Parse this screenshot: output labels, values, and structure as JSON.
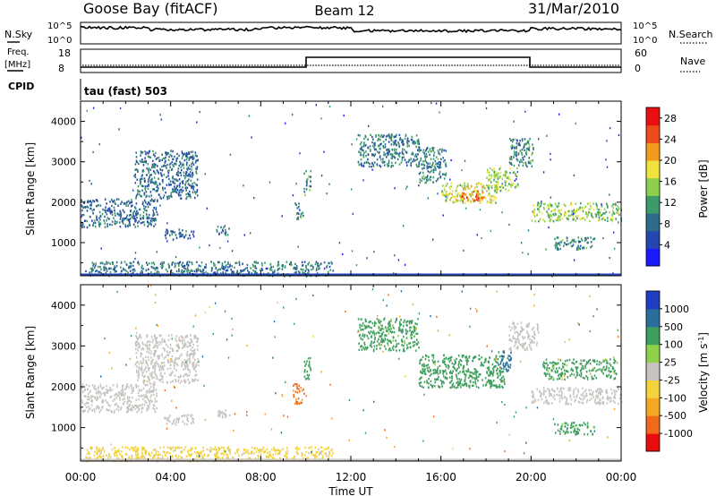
{
  "header": {
    "station": "Goose Bay (fitACF)",
    "beam": "Beam 12",
    "date": "31/Mar/2010"
  },
  "strips": {
    "nsky_label": "N.Sky",
    "nsearch_label": "N.Search",
    "nsky_ticks": [
      "10^5",
      "10^0"
    ],
    "freq_label": "Freq.",
    "freq_unit": "[MHz]",
    "freq_ticks": [
      "18",
      "8"
    ],
    "nave_label": "Nave",
    "nave_ticks": [
      "60",
      "0"
    ],
    "cpid_label": "CPID",
    "cpid_value": "tau (fast) 503"
  },
  "colors": {
    "power": [
      "#1a1aff",
      "#2346b0",
      "#2e6b8a",
      "#3d9a6a",
      "#8ccf4a",
      "#f0e23a",
      "#f39a1e",
      "#ee4a1a",
      "#e81010"
    ],
    "velocity": [
      "#e80d0d",
      "#f06a1a",
      "#f5a623",
      "#f3d23a",
      "#c7c4c0",
      "#8fd24a",
      "#3e9e5e",
      "#2a6f9b",
      "#1f3fc2"
    ]
  },
  "chart_data": [
    {
      "type": "heatmap",
      "name": "power",
      "xlabel": "Time UT",
      "ylabel": "Slant Range [km]",
      "xticks": [
        "00:00",
        "04:00",
        "08:00",
        "12:00",
        "16:00",
        "20:00",
        "00:00"
      ],
      "yticks": [
        "1000",
        "2000",
        "3000",
        "4000"
      ],
      "xlim": [
        0,
        24
      ],
      "ylim": [
        180,
        4500
      ],
      "colorbar": {
        "label": "Power [dB]",
        "ticks": [
          "4",
          "8",
          "12",
          "16",
          "20",
          "24",
          "28"
        ],
        "range": [
          0,
          30
        ]
      },
      "regions": [
        {
          "t": [
            0.0,
            3.4
          ],
          "r": [
            1400,
            2100
          ],
          "v": 8
        },
        {
          "t": [
            2.4,
            5.2
          ],
          "r": [
            2100,
            3300
          ],
          "v": 8
        },
        {
          "t": [
            3.7,
            5.0
          ],
          "r": [
            1100,
            1350
          ],
          "v": 7
        },
        {
          "t": [
            6.0,
            6.6
          ],
          "r": [
            1200,
            1450
          ],
          "v": 7
        },
        {
          "t": [
            0.2,
            11.2
          ],
          "r": [
            200,
            550
          ],
          "v": 9
        },
        {
          "t": [
            9.5,
            9.9
          ],
          "r": [
            1600,
            2000
          ],
          "v": 10
        },
        {
          "t": [
            9.9,
            10.2
          ],
          "r": [
            2200,
            2800
          ],
          "v": 10
        },
        {
          "t": [
            12.3,
            15.0
          ],
          "r": [
            2900,
            3700
          ],
          "v": 9
        },
        {
          "t": [
            15.0,
            16.2
          ],
          "r": [
            2500,
            3400
          ],
          "v": 10
        },
        {
          "t": [
            16.0,
            18.5
          ],
          "r": [
            2000,
            2500
          ],
          "v": 17
        },
        {
          "t": [
            16.8,
            17.9
          ],
          "r": [
            2050,
            2300
          ],
          "v": 24
        },
        {
          "t": [
            18.0,
            19.4
          ],
          "r": [
            2300,
            2900
          ],
          "v": 15
        },
        {
          "t": [
            19.0,
            20.1
          ],
          "r": [
            2900,
            3600
          ],
          "v": 10
        },
        {
          "t": [
            20.0,
            24.0
          ],
          "r": [
            1550,
            2000
          ],
          "v": 15
        },
        {
          "t": [
            21.0,
            22.8
          ],
          "r": [
            850,
            1150
          ],
          "v": 10
        }
      ]
    },
    {
      "type": "heatmap",
      "name": "velocity",
      "xlabel": "Time UT",
      "ylabel": "Slant Range [km]",
      "xticks": [
        "00:00",
        "04:00",
        "08:00",
        "12:00",
        "16:00",
        "20:00",
        "00:00"
      ],
      "yticks": [
        "1000",
        "2000",
        "3000",
        "4000"
      ],
      "xlim": [
        0,
        24
      ],
      "ylim": [
        180,
        4500
      ],
      "colorbar": {
        "label": "Velocity [m s^-1]",
        "ticks": [
          "1000",
          "500",
          "100",
          "25",
          "-25",
          "-100",
          "-500",
          "-1000"
        ]
      },
      "regions": [
        {
          "t": [
            0.0,
            3.4
          ],
          "r": [
            1400,
            2100
          ],
          "v": 0
        },
        {
          "t": [
            2.4,
            5.2
          ],
          "r": [
            2100,
            3300
          ],
          "v": 0
        },
        {
          "t": [
            3.7,
            5.0
          ],
          "r": [
            1100,
            1350
          ],
          "v": 0
        },
        {
          "t": [
            6.0,
            6.6
          ],
          "r": [
            1200,
            1450
          ],
          "v": 0
        },
        {
          "t": [
            0.2,
            11.2
          ],
          "r": [
            200,
            550
          ],
          "v": -50
        },
        {
          "t": [
            9.4,
            9.9
          ],
          "r": [
            1600,
            2100
          ],
          "v": -600
        },
        {
          "t": [
            9.9,
            10.2
          ],
          "r": [
            2200,
            2800
          ],
          "v": 200
        },
        {
          "t": [
            12.3,
            15.0
          ],
          "r": [
            2900,
            3700
          ],
          "v": 150
        },
        {
          "t": [
            15.0,
            18.8
          ],
          "r": [
            2000,
            2800
          ],
          "v": 300
        },
        {
          "t": [
            18.5,
            19.1
          ],
          "r": [
            2400,
            2900
          ],
          "v": 700
        },
        {
          "t": [
            19.0,
            20.3
          ],
          "r": [
            2900,
            3600
          ],
          "v": 0
        },
        {
          "t": [
            20.0,
            24.0
          ],
          "r": [
            1600,
            2000
          ],
          "v": 0
        },
        {
          "t": [
            20.5,
            23.8
          ],
          "r": [
            2200,
            2700
          ],
          "v": 150
        },
        {
          "t": [
            21.0,
            22.8
          ],
          "r": [
            850,
            1150
          ],
          "v": 150
        }
      ]
    }
  ]
}
